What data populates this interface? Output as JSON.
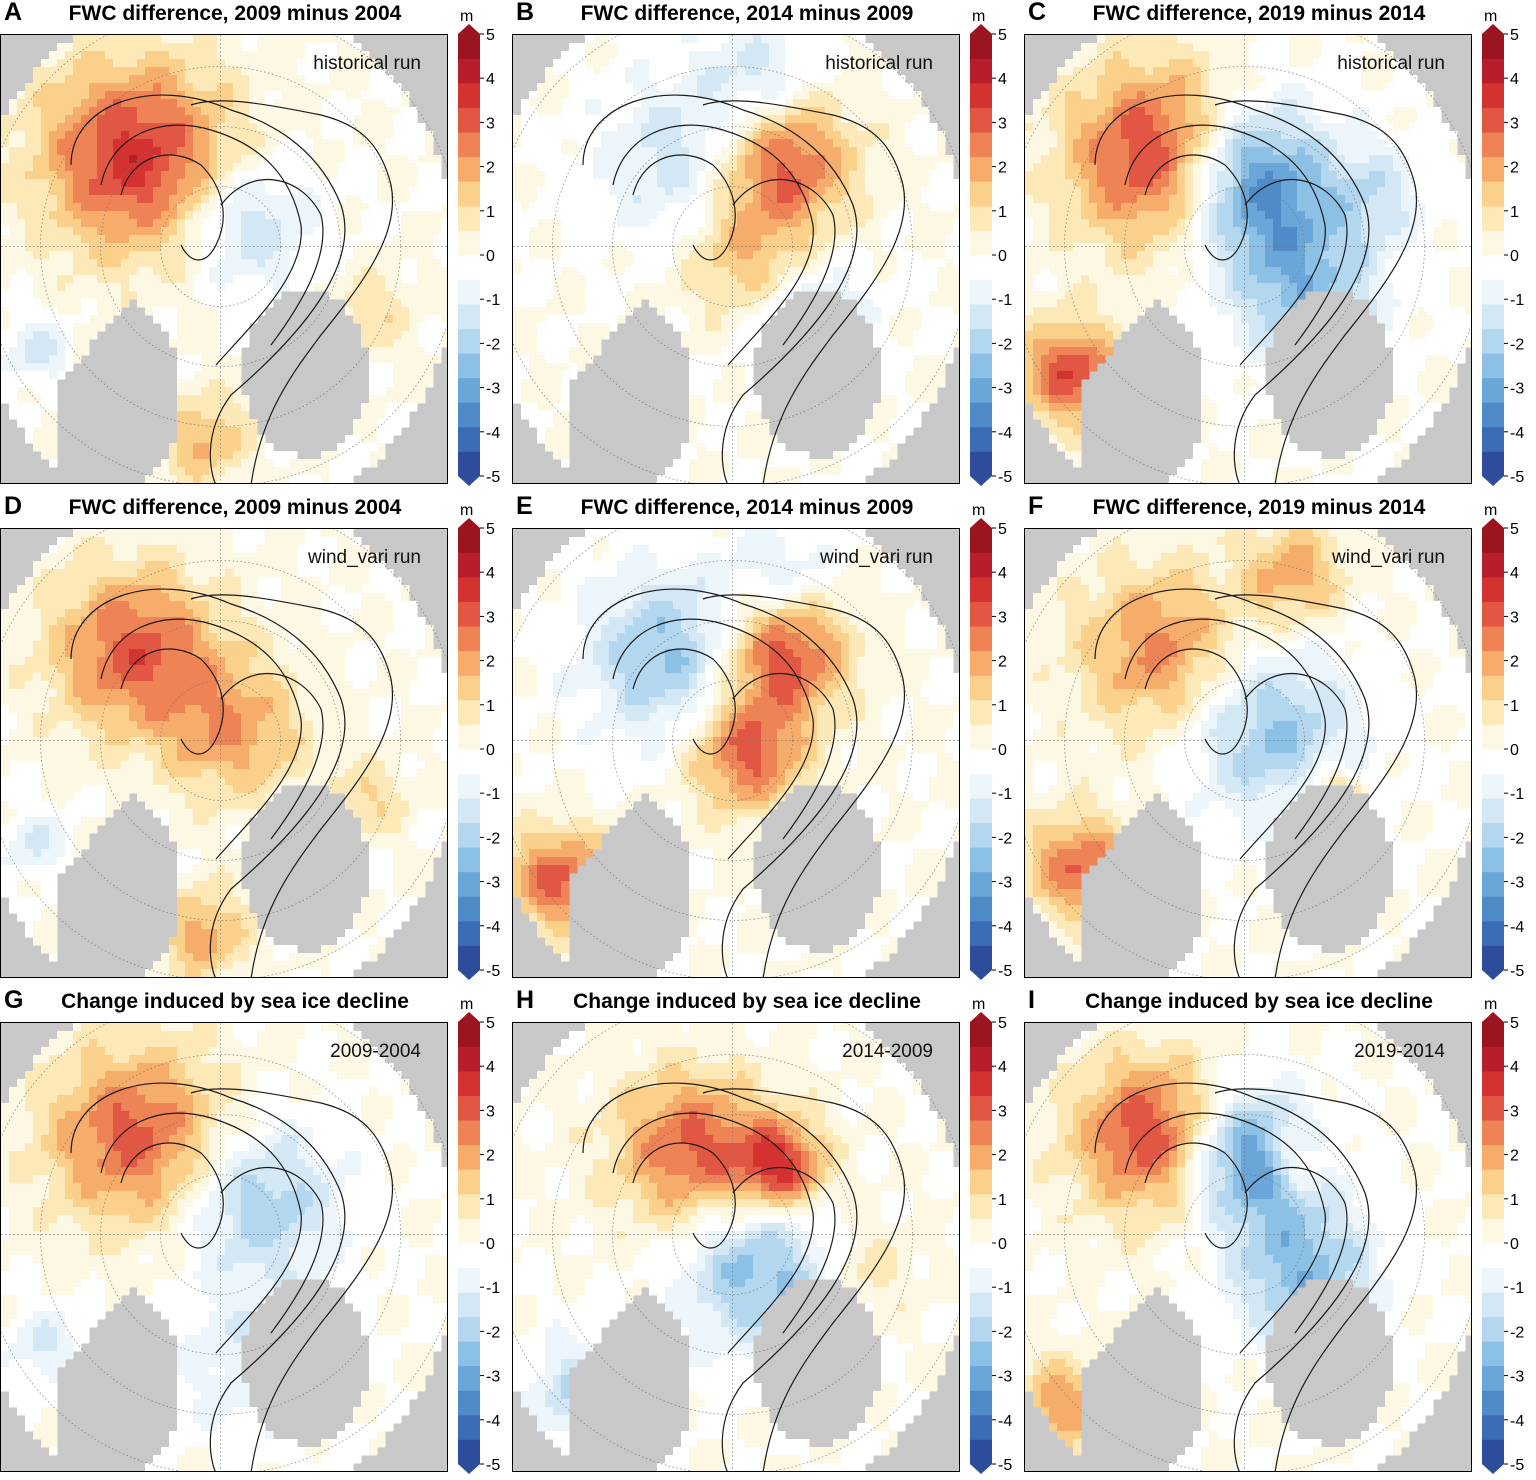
{
  "chart_data": [
    {
      "type": "heatmap",
      "letter": "A",
      "title": "FWC difference, 2009 minus 2004",
      "label": "historical run",
      "pattern": [
        [
          0.3,
          0.27,
          3.6,
          0.15
        ],
        [
          0.55,
          0.42,
          -1.8,
          0.1
        ],
        [
          0.45,
          0.9,
          1.8,
          0.07
        ],
        [
          0.08,
          0.7,
          -1.4,
          0.05
        ],
        [
          0.82,
          0.62,
          1.0,
          0.07
        ]
      ]
    },
    {
      "type": "heatmap",
      "letter": "B",
      "title": "FWC difference, 2014 minus 2009",
      "label": "historical run",
      "pattern": [
        [
          0.38,
          0.28,
          -1.6,
          0.13
        ],
        [
          0.6,
          0.28,
          3.2,
          0.11
        ],
        [
          0.52,
          0.5,
          1.8,
          0.1
        ],
        [
          0.65,
          0.62,
          -1.4,
          0.1
        ],
        [
          0.55,
          0.1,
          -1.5,
          0.09
        ]
      ]
    },
    {
      "type": "heatmap",
      "letter": "C",
      "title": "FWC difference, 2019 minus 2014",
      "label": "historical run",
      "pattern": [
        [
          0.3,
          0.27,
          3.8,
          0.14
        ],
        [
          0.5,
          0.32,
          -4.0,
          0.12
        ],
        [
          0.62,
          0.55,
          -2.4,
          0.12
        ],
        [
          0.1,
          0.75,
          3.2,
          0.08
        ],
        [
          0.78,
          0.35,
          -1.2,
          0.08
        ]
      ]
    },
    {
      "type": "heatmap",
      "letter": "D",
      "title": "FWC difference, 2009 minus 2004",
      "label": "wind_vari run",
      "pattern": [
        [
          0.3,
          0.27,
          3.0,
          0.13
        ],
        [
          0.52,
          0.45,
          2.0,
          0.11
        ],
        [
          0.45,
          0.9,
          2.0,
          0.07
        ],
        [
          0.08,
          0.7,
          -1.2,
          0.05
        ],
        [
          0.82,
          0.6,
          1.2,
          0.06
        ]
      ]
    },
    {
      "type": "heatmap",
      "letter": "E",
      "title": "FWC difference, 2014 minus 2009",
      "label": "wind_vari run",
      "pattern": [
        [
          0.35,
          0.28,
          -2.4,
          0.13
        ],
        [
          0.6,
          0.28,
          3.4,
          0.1
        ],
        [
          0.52,
          0.5,
          3.0,
          0.09
        ],
        [
          0.1,
          0.78,
          3.0,
          0.08
        ],
        [
          0.6,
          0.1,
          -1.2,
          0.08
        ]
      ]
    },
    {
      "type": "heatmap",
      "letter": "F",
      "title": "FWC difference, 2019 minus 2014",
      "label": "wind_vari run",
      "pattern": [
        [
          0.3,
          0.27,
          2.4,
          0.13
        ],
        [
          0.55,
          0.45,
          -2.4,
          0.13
        ],
        [
          0.12,
          0.75,
          2.8,
          0.08
        ],
        [
          0.6,
          0.1,
          2.0,
          0.08
        ],
        [
          0.68,
          0.6,
          2.2,
          0.05
        ]
      ]
    },
    {
      "type": "heatmap",
      "letter": "G",
      "title": "Change induced by sea ice decline",
      "label": "2009-2004",
      "pattern": [
        [
          0.3,
          0.25,
          3.0,
          0.14
        ],
        [
          0.58,
          0.4,
          -2.2,
          0.12
        ],
        [
          0.55,
          0.75,
          -1.0,
          0.12
        ],
        [
          0.1,
          0.72,
          -1.2,
          0.06
        ]
      ]
    },
    {
      "type": "heatmap",
      "letter": "H",
      "title": "Change induced by sea ice decline",
      "label": "2014-2009",
      "pattern": [
        [
          0.4,
          0.28,
          3.0,
          0.12
        ],
        [
          0.6,
          0.32,
          3.4,
          0.07
        ],
        [
          0.55,
          0.55,
          -2.6,
          0.12
        ],
        [
          0.15,
          0.82,
          -1.8,
          0.08
        ],
        [
          0.78,
          0.55,
          1.0,
          0.08
        ]
      ]
    },
    {
      "type": "heatmap",
      "letter": "I",
      "title": "Change induced by sea ice decline",
      "label": "2019-2014",
      "pattern": [
        [
          0.28,
          0.25,
          3.4,
          0.12
        ],
        [
          0.5,
          0.3,
          -3.8,
          0.1
        ],
        [
          0.62,
          0.55,
          -2.6,
          0.11
        ],
        [
          0.08,
          0.85,
          2.2,
          0.07
        ],
        [
          0.6,
          0.3,
          1.8,
          0.05
        ]
      ]
    }
  ],
  "colorbar": {
    "unit": "m",
    "ticks": [
      "5",
      "4",
      "3",
      "2",
      "1",
      "0",
      "-1",
      "-2",
      "-3",
      "-4",
      "-5"
    ],
    "range": [
      -5,
      5
    ],
    "colors": [
      "#2e4c9c",
      "#3b6cb4",
      "#4f8ac9",
      "#6aa6d8",
      "#8cc0e4",
      "#b2d7ee",
      "#d3e8f4",
      "#ecf5f9",
      "#ffffff",
      "#fdf8e4",
      "#fde9b8",
      "#fbd08a",
      "#f6ad6b",
      "#ee8455",
      "#e25743",
      "#d43231",
      "#b81d2b",
      "#9a1422"
    ]
  }
}
